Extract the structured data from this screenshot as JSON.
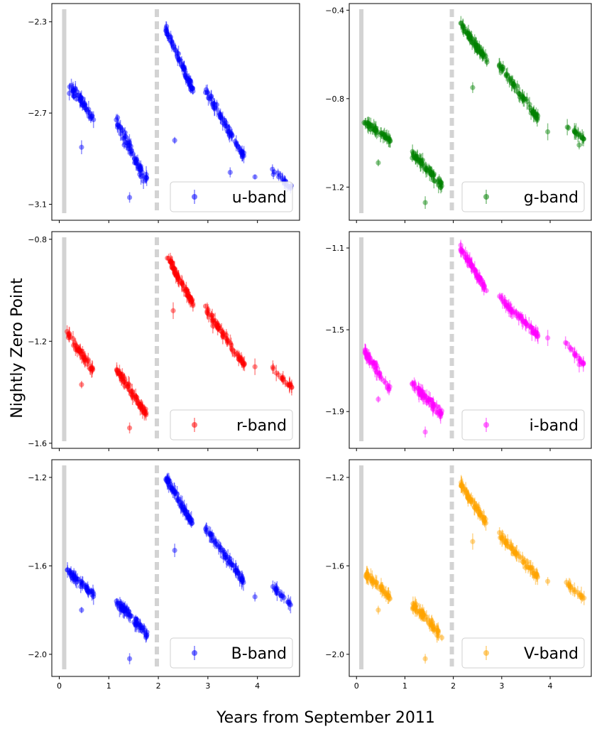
{
  "figure": {
    "ylabel": "Nightly Zero Point",
    "xlabel": "Years from September 2011"
  },
  "chart_data": [
    {
      "type": "scatter",
      "band": "u-band",
      "legend": "u-band",
      "legend_loc": "lower right",
      "color": "#0000ff",
      "xlim": [
        -0.15,
        4.85
      ],
      "ylim": [
        -3.17,
        -2.22
      ],
      "xticks": [
        0,
        1,
        2,
        3,
        4
      ],
      "yticks": [
        -2.3,
        -2.7,
        -3.1
      ],
      "ytick_labels": [
        "−2.3",
        "−2.7",
        "−3.1"
      ],
      "vlines": [
        {
          "x": 0.1,
          "style": "solid"
        },
        {
          "x": 1.97,
          "style": "dashed"
        }
      ],
      "segments": [
        {
          "x0": 0.15,
          "x1": 0.7,
          "y0": -2.57,
          "y1": -2.72,
          "n": 45,
          "jitter": 0.045
        },
        {
          "x0": 1.15,
          "x1": 1.77,
          "y0": -2.74,
          "y1": -3.0,
          "n": 60,
          "jitter": 0.05
        },
        {
          "x0": 2.15,
          "x1": 2.7,
          "y0": -2.33,
          "y1": -2.6,
          "n": 60,
          "jitter": 0.03
        },
        {
          "x0": 2.95,
          "x1": 3.75,
          "y0": -2.6,
          "y1": -2.9,
          "n": 60,
          "jitter": 0.03
        },
        {
          "x0": 4.3,
          "x1": 4.7,
          "y0": -2.95,
          "y1": -3.03,
          "n": 18,
          "jitter": 0.02
        }
      ],
      "outliers": [
        [
          0.45,
          -2.85
        ],
        [
          1.42,
          -3.07
        ],
        [
          2.33,
          -2.82
        ],
        [
          3.45,
          -2.96
        ],
        [
          3.95,
          -2.98
        ]
      ]
    },
    {
      "type": "scatter",
      "band": "g-band",
      "legend": "g-band",
      "legend_loc": "lower right",
      "color": "#008000",
      "xlim": [
        -0.15,
        4.85
      ],
      "ylim": [
        -1.35,
        -0.37
      ],
      "xticks": [
        0,
        1,
        2,
        3,
        4
      ],
      "yticks": [
        -0.4,
        -0.8,
        -1.2
      ],
      "ytick_labels": [
        "−0.4",
        "−0.8",
        "−1.2"
      ],
      "vlines": [
        {
          "x": 0.1,
          "style": "solid"
        },
        {
          "x": 1.97,
          "style": "dashed"
        }
      ],
      "segments": [
        {
          "x0": 0.15,
          "x1": 0.7,
          "y0": -0.9,
          "y1": -0.99,
          "n": 45,
          "jitter": 0.025
        },
        {
          "x0": 1.15,
          "x1": 1.77,
          "y0": -1.05,
          "y1": -1.19,
          "n": 60,
          "jitter": 0.03
        },
        {
          "x0": 2.15,
          "x1": 2.7,
          "y0": -0.46,
          "y1": -0.63,
          "n": 60,
          "jitter": 0.025
        },
        {
          "x0": 2.95,
          "x1": 3.75,
          "y0": -0.65,
          "y1": -0.89,
          "n": 60,
          "jitter": 0.025
        },
        {
          "x0": 4.3,
          "x1": 4.7,
          "y0": -0.92,
          "y1": -0.98,
          "n": 18,
          "jitter": 0.015
        }
      ],
      "outliers": [
        [
          0.45,
          -1.09
        ],
        [
          1.42,
          -1.27
        ],
        [
          2.4,
          -0.75
        ],
        [
          3.95,
          -0.95
        ],
        [
          4.6,
          -1.01
        ]
      ]
    },
    {
      "type": "scatter",
      "band": "r-band",
      "legend": "r-band",
      "legend_loc": "lower right",
      "color": "#ff0000",
      "xlim": [
        -0.15,
        4.85
      ],
      "ylim": [
        -1.62,
        -0.77
      ],
      "xticks": [
        0,
        1,
        2,
        3,
        4
      ],
      "yticks": [
        -0.8,
        -1.2,
        -1.6
      ],
      "ytick_labels": [
        "−0.8",
        "−1.2",
        "−1.6"
      ],
      "vlines": [
        {
          "x": 0.1,
          "style": "solid"
        },
        {
          "x": 1.97,
          "style": "dashed"
        }
      ],
      "segments": [
        {
          "x0": 0.15,
          "x1": 0.7,
          "y0": -1.17,
          "y1": -1.32,
          "n": 45,
          "jitter": 0.025
        },
        {
          "x0": 1.15,
          "x1": 1.77,
          "y0": -1.31,
          "y1": -1.49,
          "n": 60,
          "jitter": 0.025
        },
        {
          "x0": 2.15,
          "x1": 2.7,
          "y0": -0.86,
          "y1": -1.05,
          "n": 60,
          "jitter": 0.02
        },
        {
          "x0": 2.95,
          "x1": 3.75,
          "y0": -1.07,
          "y1": -1.3,
          "n": 60,
          "jitter": 0.02
        },
        {
          "x0": 4.3,
          "x1": 4.7,
          "y0": -1.31,
          "y1": -1.38,
          "n": 18,
          "jitter": 0.015
        }
      ],
      "outliers": [
        [
          0.45,
          -1.37
        ],
        [
          1.42,
          -1.54
        ],
        [
          2.3,
          -1.08
        ],
        [
          3.1,
          -1.14
        ],
        [
          3.95,
          -1.3
        ]
      ]
    },
    {
      "type": "scatter",
      "band": "i-band",
      "legend": "i-band",
      "legend_loc": "lower right",
      "color": "#ff00ff",
      "xlim": [
        -0.15,
        4.85
      ],
      "ylim": [
        -2.08,
        -1.02
      ],
      "xticks": [
        0,
        1,
        2,
        3,
        4
      ],
      "yticks": [
        -1.1,
        -1.5,
        -1.9
      ],
      "ytick_labels": [
        "−1.1",
        "−1.5",
        "−1.9"
      ],
      "vlines": [
        {
          "x": 0.1,
          "style": "solid"
        },
        {
          "x": 1.97,
          "style": "dashed"
        }
      ],
      "segments": [
        {
          "x0": 0.15,
          "x1": 0.7,
          "y0": -1.6,
          "y1": -1.79,
          "n": 45,
          "jitter": 0.03
        },
        {
          "x0": 1.15,
          "x1": 1.77,
          "y0": -1.76,
          "y1": -1.92,
          "n": 60,
          "jitter": 0.03
        },
        {
          "x0": 2.15,
          "x1": 2.7,
          "y0": -1.1,
          "y1": -1.31,
          "n": 60,
          "jitter": 0.025
        },
        {
          "x0": 2.95,
          "x1": 3.75,
          "y0": -1.34,
          "y1": -1.53,
          "n": 60,
          "jitter": 0.025
        },
        {
          "x0": 4.3,
          "x1": 4.7,
          "y0": -1.56,
          "y1": -1.67,
          "n": 18,
          "jitter": 0.015
        }
      ],
      "outliers": [
        [
          0.45,
          -1.84
        ],
        [
          1.42,
          -2.0
        ],
        [
          3.95,
          -1.54
        ],
        [
          4.6,
          -1.67
        ]
      ]
    },
    {
      "type": "scatter",
      "band": "B-band",
      "legend": "B-band",
      "legend_loc": "lower right",
      "color": "#0000ff",
      "xlim": [
        -0.15,
        4.85
      ],
      "ylim": [
        -2.1,
        -1.12
      ],
      "xticks": [
        0,
        1,
        2,
        3,
        4
      ],
      "yticks": [
        -1.2,
        -1.6,
        -2.0
      ],
      "ytick_labels": [
        "−1.2",
        "−1.6",
        "−2.0"
      ],
      "vlines": [
        {
          "x": 0.1,
          "style": "solid"
        },
        {
          "x": 1.97,
          "style": "dashed"
        }
      ],
      "segments": [
        {
          "x0": 0.15,
          "x1": 0.7,
          "y0": -1.62,
          "y1": -1.73,
          "n": 45,
          "jitter": 0.025
        },
        {
          "x0": 1.15,
          "x1": 1.77,
          "y0": -1.76,
          "y1": -1.91,
          "n": 60,
          "jitter": 0.03
        },
        {
          "x0": 2.15,
          "x1": 2.7,
          "y0": -1.2,
          "y1": -1.41,
          "n": 60,
          "jitter": 0.025
        },
        {
          "x0": 2.95,
          "x1": 3.75,
          "y0": -1.43,
          "y1": -1.68,
          "n": 60,
          "jitter": 0.025
        },
        {
          "x0": 4.3,
          "x1": 4.7,
          "y0": -1.69,
          "y1": -1.78,
          "n": 18,
          "jitter": 0.015
        }
      ],
      "outliers": [
        [
          0.45,
          -1.8
        ],
        [
          1.42,
          -2.02
        ],
        [
          2.33,
          -1.53
        ],
        [
          3.95,
          -1.74
        ]
      ]
    },
    {
      "type": "scatter",
      "band": "V-band",
      "legend": "V-band",
      "legend_loc": "lower right",
      "color": "#ffa500",
      "xlim": [
        -0.15,
        4.85
      ],
      "ylim": [
        -2.1,
        -1.12
      ],
      "xticks": [
        0,
        1,
        2,
        3,
        4
      ],
      "yticks": [
        -1.2,
        -1.6,
        -2.0
      ],
      "ytick_labels": [
        "−1.2",
        "−1.6",
        "−2.0"
      ],
      "vlines": [
        {
          "x": 0.1,
          "style": "solid"
        },
        {
          "x": 1.97,
          "style": "dashed"
        }
      ],
      "segments": [
        {
          "x0": 0.15,
          "x1": 0.7,
          "y0": -1.63,
          "y1": -1.74,
          "n": 45,
          "jitter": 0.025
        },
        {
          "x0": 1.15,
          "x1": 1.77,
          "y0": -1.77,
          "y1": -1.92,
          "n": 60,
          "jitter": 0.03
        },
        {
          "x0": 2.15,
          "x1": 2.7,
          "y0": -1.23,
          "y1": -1.41,
          "n": 60,
          "jitter": 0.025
        },
        {
          "x0": 2.95,
          "x1": 3.75,
          "y0": -1.46,
          "y1": -1.65,
          "n": 60,
          "jitter": 0.025
        },
        {
          "x0": 4.3,
          "x1": 4.7,
          "y0": -1.67,
          "y1": -1.75,
          "n": 18,
          "jitter": 0.015
        }
      ],
      "outliers": [
        [
          0.45,
          -1.8
        ],
        [
          1.42,
          -2.02
        ],
        [
          2.4,
          -1.49
        ],
        [
          3.95,
          -1.67
        ]
      ]
    }
  ]
}
